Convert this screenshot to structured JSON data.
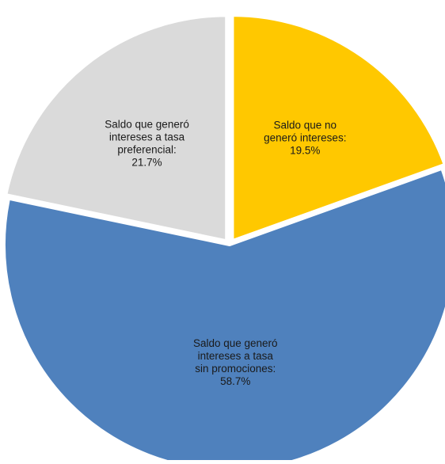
{
  "chart_data": {
    "type": "pie",
    "title": "",
    "slices": [
      {
        "label_lines": [
          "Saldo que no",
          "generó intereses:",
          "19.5%"
        ],
        "value": 19.5,
        "color": "#ffc800"
      },
      {
        "label_lines": [
          "Saldo que generó",
          "intereses a tasa",
          "sin promociones:",
          "58.7%"
        ],
        "value": 58.7,
        "color": "#4f81bd"
      },
      {
        "label_lines": [
          "Saldo que generó",
          "intereses a tasa",
          "preferencial:",
          "21.7%"
        ],
        "value": 21.7,
        "color": "#dadada"
      }
    ],
    "start_angle_deg": 0,
    "direction": "clockwise",
    "legend": "none",
    "exploded": true
  }
}
